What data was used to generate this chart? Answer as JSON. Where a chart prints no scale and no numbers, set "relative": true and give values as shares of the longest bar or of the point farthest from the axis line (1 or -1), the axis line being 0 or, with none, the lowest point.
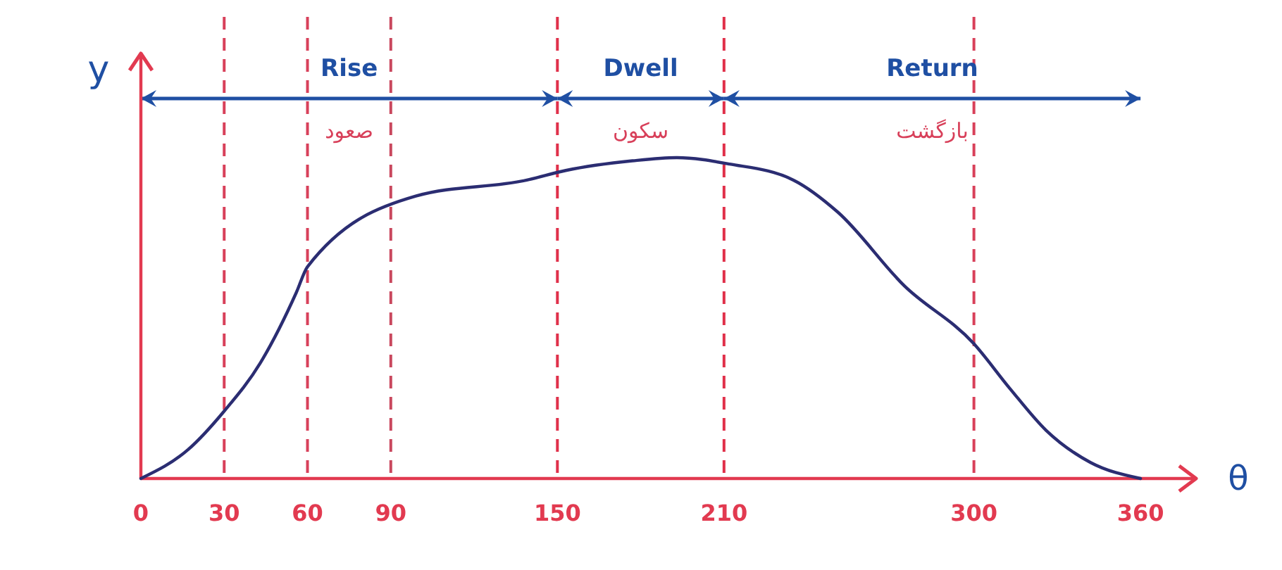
{
  "chart_data": {
    "type": "line",
    "xlabel": "θ",
    "ylabel": "y",
    "relative": true,
    "xlim": [
      0,
      380
    ],
    "xticks": [
      0,
      30,
      60,
      90,
      150,
      210,
      300,
      360
    ],
    "x": [
      0,
      17,
      30,
      43,
      56,
      60,
      99,
      139,
      153,
      177,
      193,
      212,
      235,
      251,
      275,
      300,
      313,
      326,
      342,
      360
    ],
    "series": [
      {
        "color": "#2b2d72",
        "values": [
          0,
          0.09,
          0.21,
          0.36,
          0.58,
          0.66,
          0.88,
          0.93,
          0.96,
          0.99,
          1,
          0.98,
          0.93,
          0.83,
          0.6,
          0.42,
          0.28,
          0.15,
          0.05,
          0
        ]
      }
    ],
    "ref_lines": [
      {
        "axis": "x",
        "value": 30,
        "color": "#d8405a",
        "line_style": "dashed"
      },
      {
        "axis": "x",
        "value": 60,
        "color": "#d8405a",
        "line_style": "dashed"
      },
      {
        "axis": "x",
        "value": 90,
        "color": "#c9485e",
        "line_style": "dashed"
      },
      {
        "axis": "x",
        "value": 150,
        "color": "#e0304a",
        "line_style": "dashed"
      },
      {
        "axis": "x",
        "value": 210,
        "color": "#e0304a",
        "line_style": "dashed"
      },
      {
        "axis": "x",
        "value": 300,
        "color": "#d8405a",
        "line_style": "dashed"
      }
    ],
    "annotations": [
      "Rise",
      "Dwell",
      "Return",
      "صعود",
      "سکون",
      "بازگشت"
    ]
  }
}
